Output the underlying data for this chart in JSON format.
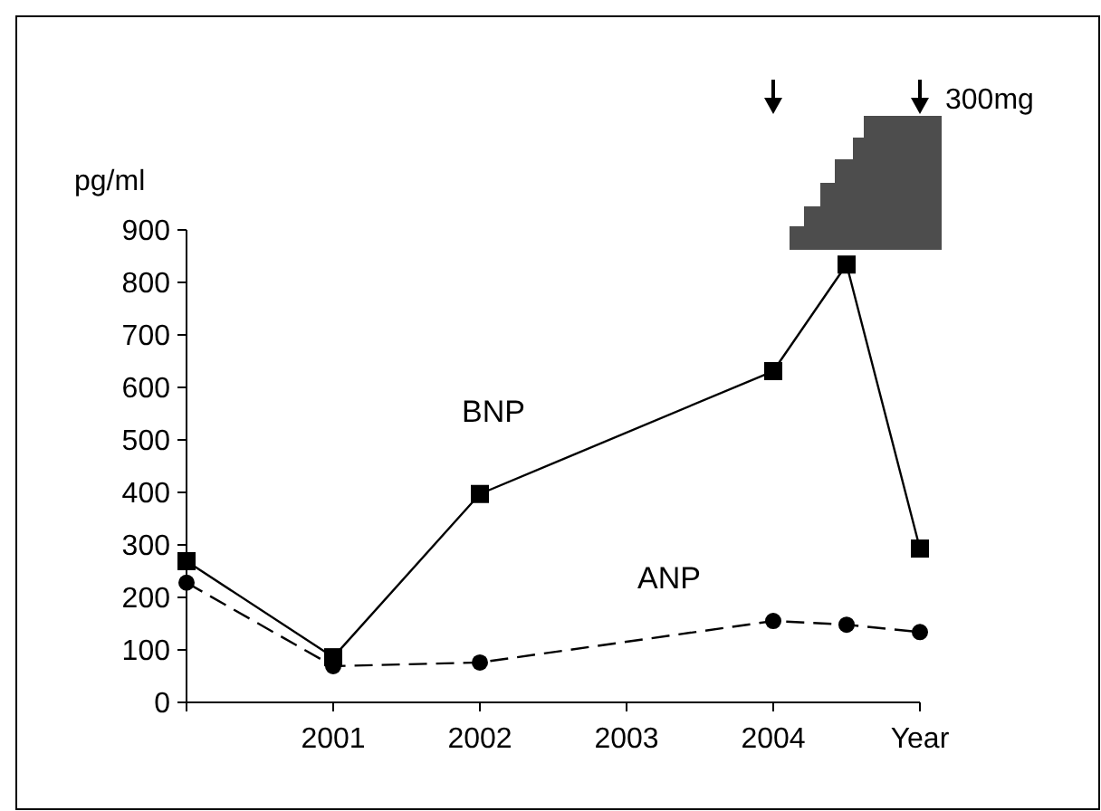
{
  "chart_data": {
    "type": "line",
    "ylabel": "pg/ml",
    "xlim": [
      2000,
      2005
    ],
    "xticks": [
      {
        "value": 2000,
        "label": null
      },
      2001,
      2002,
      2003,
      2004,
      {
        "value": 2005,
        "label": "Year"
      }
    ],
    "ylim": [
      0,
      900
    ],
    "yticks": [
      0,
      100,
      200,
      300,
      400,
      500,
      600,
      700,
      800,
      900
    ],
    "grid": false,
    "annotations": [
      "300mg"
    ],
    "series": [
      {
        "name": "BNP",
        "color": "#000000",
        "marker": "square",
        "line_style": "solid",
        "x": [
          2000,
          2001,
          2002,
          2004,
          2004.5,
          2005
        ],
        "values": [
          269,
          86,
          397,
          631,
          834,
          293
        ]
      },
      {
        "name": "ANP",
        "color": "#000000",
        "marker": "circle",
        "line_style": "dashed",
        "x": [
          2000,
          2001,
          2002,
          2004,
          2004.5,
          2005
        ],
        "values": [
          228,
          69,
          76,
          155,
          148,
          134
        ]
      }
    ]
  }
}
